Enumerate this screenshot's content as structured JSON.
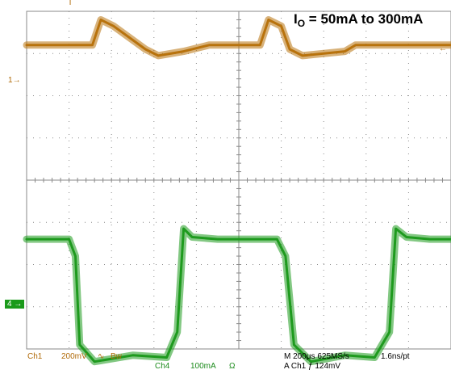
{
  "chart_data": {
    "type": "line",
    "title_main": "I",
    "title_sub": "O",
    "title_rest": " = 50mA to 300mA",
    "x_divisions": 10,
    "y_divisions": 8,
    "grid": true,
    "series": [
      {
        "channel": "Ch1",
        "color": "#b8720c",
        "units": "div",
        "x": [
          0,
          1.55,
          1.75,
          2.05,
          2.8,
          3.1,
          3.7,
          4.3,
          4.9,
          5.5,
          5.7,
          6.0,
          6.2,
          6.5,
          7.5,
          7.75,
          7.95,
          8.25,
          9.1,
          9.35,
          9.9,
          10.0
        ],
        "y": [
          3.2,
          3.2,
          3.8,
          3.65,
          3.1,
          2.95,
          3.05,
          3.2,
          3.2,
          3.2,
          3.8,
          3.65,
          3.1,
          2.95,
          3.05,
          3.2,
          3.2,
          3.2,
          3.2,
          3.2,
          3.2,
          3.2
        ]
      },
      {
        "channel": "Ch4",
        "color": "#1e9a1e",
        "units": "div",
        "x": [
          0,
          1.0,
          1.15,
          1.25,
          1.6,
          2.5,
          3.3,
          3.55,
          3.7,
          3.9,
          4.5,
          5.9,
          6.1,
          6.3,
          6.7,
          7.5,
          8.2,
          8.55,
          8.7,
          8.95,
          9.5,
          10.0
        ],
        "y": [
          -1.4,
          -1.4,
          -1.8,
          -3.9,
          -4.3,
          -4.15,
          -4.2,
          -3.6,
          -1.15,
          -1.35,
          -1.4,
          -1.4,
          -1.8,
          -3.9,
          -4.3,
          -4.15,
          -4.2,
          -3.6,
          -1.15,
          -1.35,
          -1.4,
          -1.4
        ]
      }
    ]
  },
  "markers": {
    "ch1": "1",
    "ch4": "4",
    "trigger_position": "T",
    "trigger_level": "←"
  },
  "readouts": {
    "ch1_name": "Ch1",
    "ch1_scale": "200mV",
    "ch1_coupling": "∿",
    "ch1_bw": "Bw",
    "ch4_name": "Ch4",
    "ch4_scale": "100mA",
    "ch4_term": "Ω",
    "timebase": "M 200μs 625MS/s",
    "record": "1.6ns/pt",
    "trigger_source": "A  Ch1  ƒ  124mV"
  }
}
